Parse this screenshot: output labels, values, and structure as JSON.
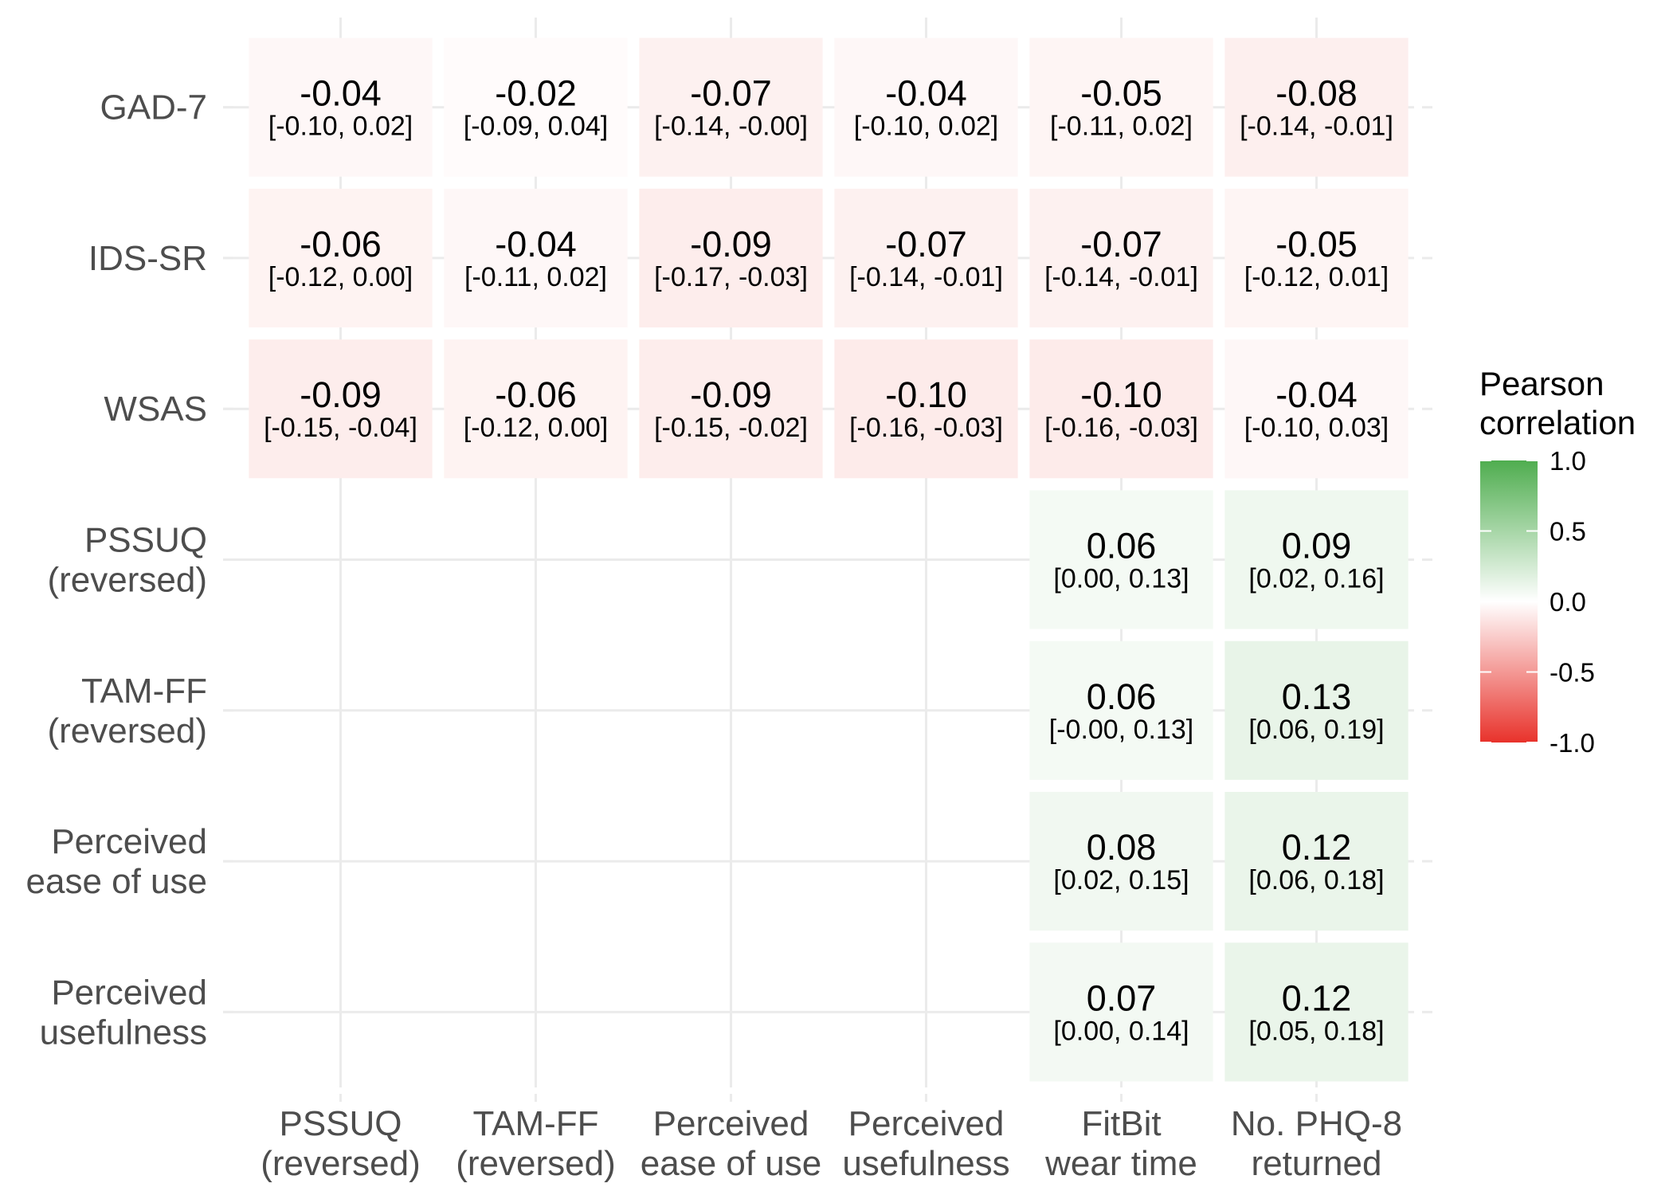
{
  "chart_data": {
    "type": "heatmap",
    "x_categories": [
      [
        "PSSUQ",
        "(reversed)"
      ],
      [
        "TAM-FF",
        "(reversed)"
      ],
      [
        "Perceived",
        "ease of use"
      ],
      [
        "Perceived",
        "usefulness"
      ],
      [
        "FitBit",
        "wear time"
      ],
      [
        "No. PHQ-8",
        "returned"
      ]
    ],
    "y_categories": [
      [
        "GAD-7"
      ],
      [
        "IDS-SR"
      ],
      [
        "WSAS"
      ],
      [
        "PSSUQ",
        "(reversed)"
      ],
      [
        "TAM-FF",
        "(reversed)"
      ],
      [
        "Perceived",
        "ease of use"
      ],
      [
        "Perceived",
        "usefulness"
      ]
    ],
    "cells": [
      {
        "row": 0,
        "col": 0,
        "value": -0.04,
        "label": "-0.04",
        "ci": "[-0.10, 0.02]"
      },
      {
        "row": 0,
        "col": 1,
        "value": -0.02,
        "label": "-0.02",
        "ci": "[-0.09, 0.04]"
      },
      {
        "row": 0,
        "col": 2,
        "value": -0.07,
        "label": "-0.07",
        "ci": "[-0.14, -0.00]"
      },
      {
        "row": 0,
        "col": 3,
        "value": -0.04,
        "label": "-0.04",
        "ci": "[-0.10, 0.02]"
      },
      {
        "row": 0,
        "col": 4,
        "value": -0.05,
        "label": "-0.05",
        "ci": "[-0.11, 0.02]"
      },
      {
        "row": 0,
        "col": 5,
        "value": -0.08,
        "label": "-0.08",
        "ci": "[-0.14, -0.01]"
      },
      {
        "row": 1,
        "col": 0,
        "value": -0.06,
        "label": "-0.06",
        "ci": "[-0.12, 0.00]"
      },
      {
        "row": 1,
        "col": 1,
        "value": -0.04,
        "label": "-0.04",
        "ci": "[-0.11, 0.02]"
      },
      {
        "row": 1,
        "col": 2,
        "value": -0.09,
        "label": "-0.09",
        "ci": "[-0.17, -0.03]"
      },
      {
        "row": 1,
        "col": 3,
        "value": -0.07,
        "label": "-0.07",
        "ci": "[-0.14, -0.01]"
      },
      {
        "row": 1,
        "col": 4,
        "value": -0.07,
        "label": "-0.07",
        "ci": "[-0.14, -0.01]"
      },
      {
        "row": 1,
        "col": 5,
        "value": -0.05,
        "label": "-0.05",
        "ci": "[-0.12, 0.01]"
      },
      {
        "row": 2,
        "col": 0,
        "value": -0.09,
        "label": "-0.09",
        "ci": "[-0.15, -0.04]"
      },
      {
        "row": 2,
        "col": 1,
        "value": -0.06,
        "label": "-0.06",
        "ci": "[-0.12, 0.00]"
      },
      {
        "row": 2,
        "col": 2,
        "value": -0.09,
        "label": "-0.09",
        "ci": "[-0.15, -0.02]"
      },
      {
        "row": 2,
        "col": 3,
        "value": -0.1,
        "label": "-0.10",
        "ci": "[-0.16, -0.03]"
      },
      {
        "row": 2,
        "col": 4,
        "value": -0.1,
        "label": "-0.10",
        "ci": "[-0.16, -0.03]"
      },
      {
        "row": 2,
        "col": 5,
        "value": -0.04,
        "label": "-0.04",
        "ci": "[-0.10, 0.03]"
      },
      {
        "row": 3,
        "col": 4,
        "value": 0.06,
        "label": "0.06",
        "ci": "[0.00, 0.13]"
      },
      {
        "row": 3,
        "col": 5,
        "value": 0.09,
        "label": "0.09",
        "ci": "[0.02, 0.16]"
      },
      {
        "row": 4,
        "col": 4,
        "value": 0.06,
        "label": "0.06",
        "ci": "[-0.00, 0.13]"
      },
      {
        "row": 4,
        "col": 5,
        "value": 0.13,
        "label": "0.13",
        "ci": "[0.06, 0.19]"
      },
      {
        "row": 5,
        "col": 4,
        "value": 0.08,
        "label": "0.08",
        "ci": "[0.02, 0.15]"
      },
      {
        "row": 5,
        "col": 5,
        "value": 0.12,
        "label": "0.12",
        "ci": "[0.06, 0.18]"
      },
      {
        "row": 6,
        "col": 4,
        "value": 0.07,
        "label": "0.07",
        "ci": "[0.00, 0.14]"
      },
      {
        "row": 6,
        "col": 5,
        "value": 0.12,
        "label": "0.12",
        "ci": "[0.05, 0.18]"
      }
    ],
    "legend": {
      "title": [
        "Pearson",
        "correlation"
      ],
      "ticks": [
        1.0,
        0.5,
        0.0,
        -0.5,
        -1.0
      ],
      "tick_labels": [
        "1.0",
        "0.5",
        "0.0",
        "-0.5",
        "-1.0"
      ],
      "placement": "right",
      "range": [
        -1.0,
        1.0
      ]
    },
    "colors": {
      "negative": "#e8322b",
      "zero": "#ffffff",
      "positive": "#4fad4f"
    },
    "grid": true
  }
}
